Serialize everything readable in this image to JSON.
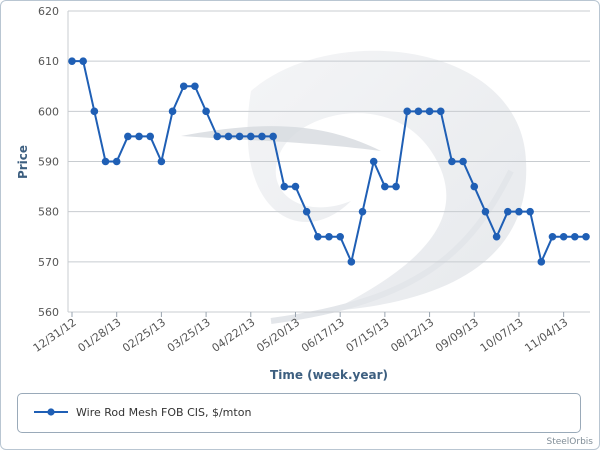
{
  "chart_data": {
    "type": "line",
    "xlabel": "Time (week.year)",
    "ylabel": "Price",
    "ylim": [
      560,
      620
    ],
    "yticks": [
      560,
      570,
      580,
      590,
      600,
      610,
      620
    ],
    "grid": "horizontal",
    "legend_position": "bottom",
    "x_tick_labels": [
      "12/31/12",
      "01/28/13",
      "02/25/13",
      "03/25/13",
      "04/22/13",
      "05/20/13",
      "06/17/13",
      "07/15/13",
      "08/12/13",
      "09/09/13",
      "10/07/13",
      "11/04/13"
    ],
    "x_tick_every": 4,
    "series": [
      {
        "name": "Wire Rod Mesh FOB CIS, $/mton",
        "color": "#1f5fb5",
        "values": [
          610,
          610,
          600,
          590,
          590,
          595,
          595,
          595,
          590,
          600,
          605,
          605,
          600,
          595,
          595,
          595,
          595,
          595,
          595,
          585,
          585,
          580,
          575,
          575,
          575,
          570,
          580,
          590,
          585,
          585,
          600,
          600,
          600,
          600,
          590,
          590,
          585,
          580,
          575,
          580,
          580,
          580,
          570,
          575,
          575,
          575,
          575
        ]
      }
    ]
  },
  "watermark": "SteelOrbis"
}
